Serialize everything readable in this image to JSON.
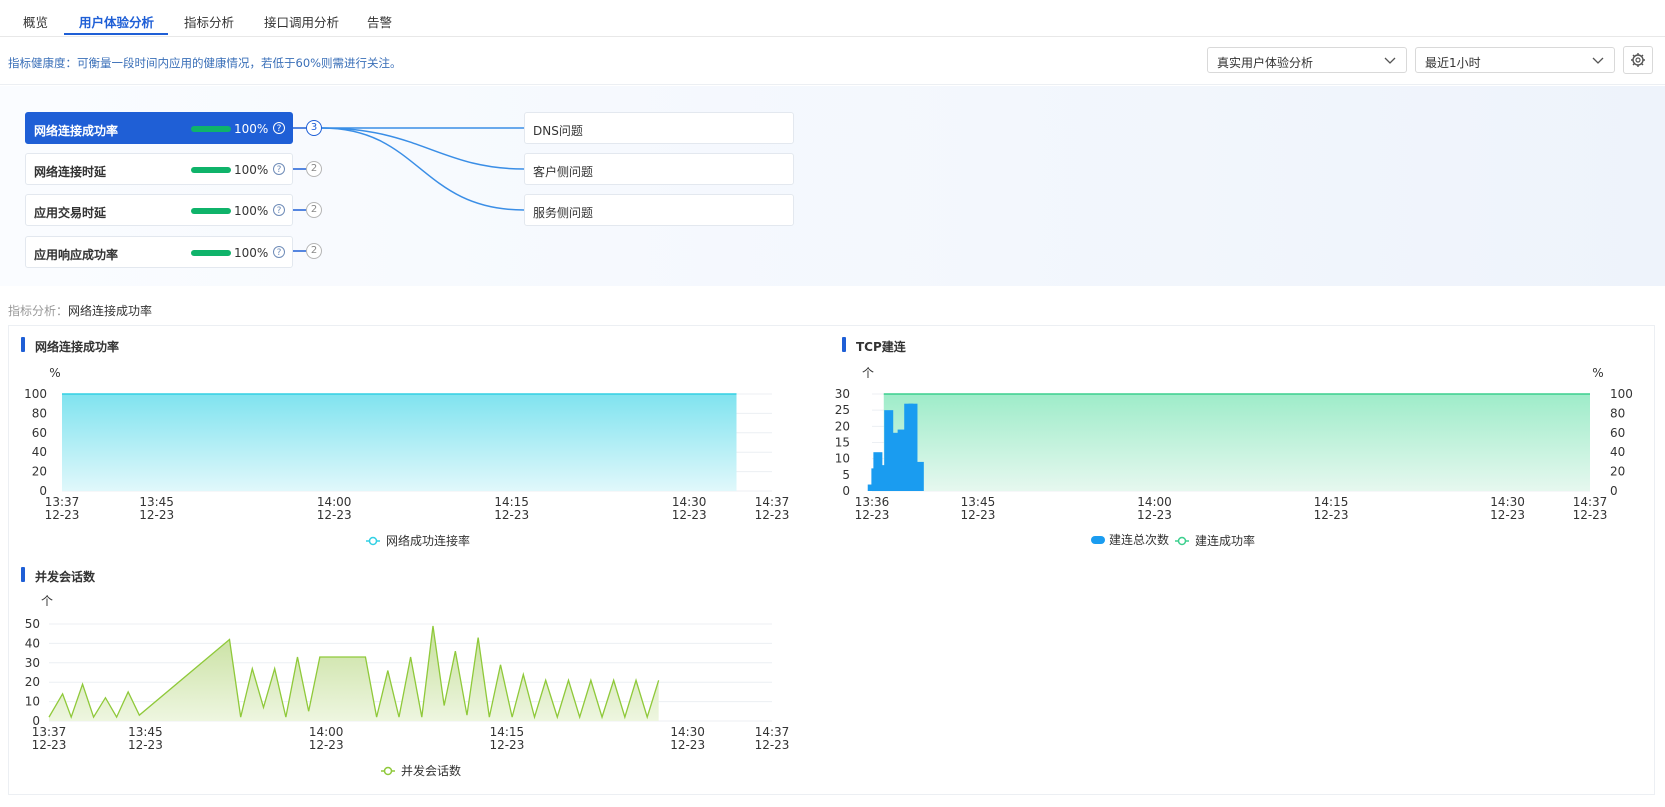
{
  "tabs": [
    {
      "label": "概览"
    },
    {
      "label": "用户体验分析",
      "active": true
    },
    {
      "label": "指标分析"
    },
    {
      "label": "接口调用分析"
    },
    {
      "label": "告警"
    }
  ],
  "hint": "指标健康度：可衡量一段时间内应用的健康情况，若低于60%则需进行关注。",
  "filters": {
    "analysis_type": "真实用户体验分析",
    "time_range": "最近1小时"
  },
  "metrics": [
    {
      "name": "网络连接成功率",
      "percent": "100%",
      "issue_count": "3",
      "active": true
    },
    {
      "name": "网络连接时延",
      "percent": "100%",
      "issue_count": "2"
    },
    {
      "name": "应用交易时延",
      "percent": "100%",
      "issue_count": "2"
    },
    {
      "name": "应用响应成功率",
      "percent": "100%",
      "issue_count": "2"
    }
  ],
  "issues": [
    "DNS问题",
    "客户侧问题",
    "服务侧问题"
  ],
  "sub_analysis": {
    "label": "指标分析：",
    "value": "网络连接成功率"
  },
  "colors": {
    "accent": "#1f5fd6",
    "good": "#0fb36a",
    "cyan": "#32d0e4",
    "blue": "#1a9cf0",
    "green": "#8fc93a"
  },
  "chart_data": [
    {
      "type": "area",
      "title": "网络连接成功率",
      "ylabel": "%",
      "ylim": [
        0,
        100
      ],
      "yticks": [
        0,
        20,
        40,
        60,
        80,
        100
      ],
      "xticks": [
        {
          "t": "13:37",
          "d": "12-23"
        },
        {
          "t": "13:45",
          "d": "12-23"
        },
        {
          "t": "14:00",
          "d": "12-23"
        },
        {
          "t": "14:15",
          "d": "12-23"
        },
        {
          "t": "14:30",
          "d": "12-23"
        },
        {
          "t": "14:37",
          "d": "12-23"
        }
      ],
      "series": [
        {
          "name": "网络成功连接率",
          "x": [
            "13:37",
            "14:34"
          ],
          "values": [
            100,
            100
          ]
        }
      ]
    },
    {
      "type": "bar",
      "title": "TCP建连",
      "ylabel": "个",
      "ylabel_right": "%",
      "ylim": [
        0,
        30
      ],
      "yticks": [
        0,
        5,
        10,
        15,
        20,
        25,
        30
      ],
      "ylim_right": [
        0,
        100
      ],
      "yticks_right": [
        0,
        20,
        40,
        60,
        80,
        100
      ],
      "xticks": [
        {
          "t": "13:36",
          "d": "12-23"
        },
        {
          "t": "13:45",
          "d": "12-23"
        },
        {
          "t": "14:00",
          "d": "12-23"
        },
        {
          "t": "14:15",
          "d": "12-23"
        },
        {
          "t": "14:30",
          "d": "12-23"
        },
        {
          "t": "14:37",
          "d": "12-23"
        }
      ],
      "bars_minute_value": [
        [
          13.62,
          2
        ],
        [
          13.93,
          7
        ],
        [
          13.99,
          2
        ],
        [
          14.1,
          12
        ],
        [
          14.17,
          2
        ],
        [
          14.26,
          5
        ],
        [
          14.32,
          2
        ],
        [
          14.44,
          8
        ],
        [
          14.51,
          3
        ],
        [
          15.02,
          25
        ],
        [
          15.09,
          2
        ],
        [
          15.2,
          12
        ],
        [
          15.27,
          2
        ],
        [
          15.38,
          17
        ],
        [
          15.45,
          2
        ],
        [
          15.56,
          18
        ],
        [
          15.63,
          2
        ],
        [
          16.16,
          19
        ],
        [
          16.23,
          2
        ],
        [
          16.34,
          9
        ],
        [
          16.41,
          2
        ],
        [
          16.52,
          12
        ],
        [
          16.59,
          2
        ],
        [
          16.72,
          27
        ],
        [
          16.79,
          8
        ],
        [
          16.9,
          15
        ],
        [
          16.97,
          2
        ],
        [
          17.08,
          27
        ],
        [
          17.15,
          2
        ],
        [
          17.26,
          8
        ],
        [
          17.33,
          2
        ],
        [
          17.44,
          8
        ],
        [
          17.51,
          2
        ],
        [
          17.62,
          9
        ]
      ],
      "series": [
        {
          "name": "建连总次数"
        },
        {
          "name": "建连成功率",
          "values_const": 100
        }
      ]
    },
    {
      "type": "area",
      "title": "并发会话数",
      "ylabel": "个",
      "ylim": [
        0,
        50
      ],
      "yticks": [
        0,
        10,
        20,
        30,
        40,
        50
      ],
      "xticks": [
        {
          "t": "13:37",
          "d": "12-23"
        },
        {
          "t": "13:45",
          "d": "12-23"
        },
        {
          "t": "14:00",
          "d": "12-23"
        },
        {
          "t": "14:15",
          "d": "12-23"
        },
        {
          "t": "14:30",
          "d": "12-23"
        },
        {
          "t": "14:37",
          "d": "12-23"
        }
      ],
      "series": [
        {
          "name": "并发会话数",
          "x_min": [
            13.62,
            15.2,
            16.2,
            17.52,
            18.8,
            20.18,
            21.48,
            22.82,
            24.12,
            34.6,
            35.9,
            37.25,
            38.55,
            39.85,
            41.15,
            42.5,
            43.8,
            45.1,
            50.4,
            51.7,
            53.0,
            54.3,
            55.65,
            56.95,
            58.25,
            59.55,
            60.85,
            62.2,
            63.5,
            64.8,
            66.1,
            67.45,
            68.75,
            70.05,
            71.35,
            72.7,
            74.0,
            75.3,
            76.6,
            77.9,
            79.25,
            80.55,
            81.85,
            83.15,
            84.48
          ],
          "values": [
            2,
            14,
            2,
            19,
            2,
            12,
            2,
            15,
            3,
            42,
            2,
            27,
            7,
            27,
            2,
            33,
            5,
            33,
            33,
            2,
            26,
            2,
            33,
            2,
            49,
            8,
            36,
            3,
            43,
            2,
            29,
            2,
            24,
            2,
            21,
            2,
            21,
            2,
            21,
            2,
            21,
            2,
            21,
            2,
            21
          ]
        }
      ]
    }
  ]
}
